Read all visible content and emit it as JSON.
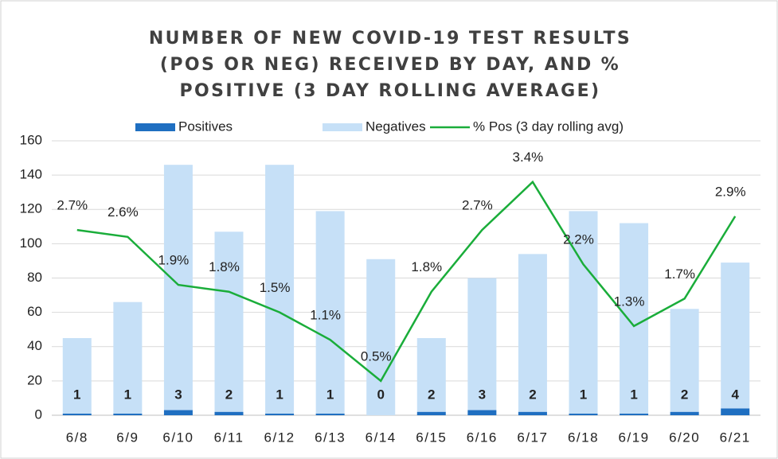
{
  "chart_data": {
    "type": "bar",
    "stacked": true,
    "title": "NUMBER OF NEW COVID-19 TEST RESULTS (POS OR NEG) RECEIVED BY DAY, AND % POSITIVE (3 DAY ROLLING AVERAGE)",
    "categories": [
      "6/8",
      "6/9",
      "6/10",
      "6/11",
      "6/12",
      "6/13",
      "6/14",
      "6/15",
      "6/16",
      "6/17",
      "6/18",
      "6/19",
      "6/20",
      "6/21"
    ],
    "series": [
      {
        "name": "Positives",
        "color": "#1f6fc1",
        "values": [
          1,
          1,
          3,
          2,
          1,
          1,
          0,
          2,
          3,
          2,
          1,
          1,
          2,
          4
        ]
      },
      {
        "name": "Negatives",
        "color": "#c6e0f7",
        "values": [
          44,
          65,
          143,
          105,
          145,
          118,
          91,
          43,
          77,
          92,
          118,
          111,
          60,
          85
        ]
      },
      {
        "name": "% Pos (3 day rolling avg)",
        "color": "#1aad3a",
        "type": "line",
        "axis": "y2",
        "values": [
          2.7,
          2.6,
          1.9,
          1.8,
          1.5,
          1.1,
          0.5,
          1.8,
          2.7,
          3.4,
          2.2,
          1.3,
          1.7,
          2.9
        ],
        "value_labels": [
          "2.7%",
          "2.6%",
          "1.9%",
          "1.8%",
          "1.5%",
          "1.1%",
          "0.5%",
          "1.8%",
          "2.7%",
          "3.4%",
          "2.2%",
          "1.3%",
          "1.7%",
          "2.9%"
        ]
      }
    ],
    "ylim": [
      0,
      160
    ],
    "yticks": [
      0,
      20,
      40,
      60,
      80,
      100,
      120,
      140,
      160
    ],
    "y2lim": [
      0,
      4
    ],
    "grid": true,
    "legend": "top"
  }
}
